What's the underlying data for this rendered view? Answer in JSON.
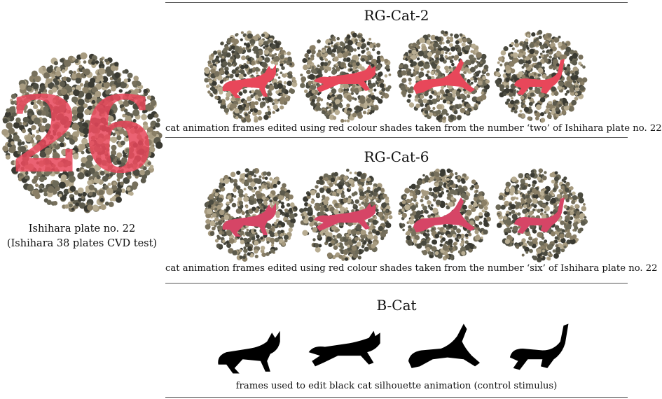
{
  "plate": {
    "number_label": "26",
    "caption_line1": "Ishihara plate no. 22",
    "caption_line2": "(Ishihara 38 plates CVD test)"
  },
  "sections": [
    {
      "title": "RG-Cat-2",
      "caption": "cat animation frames edited using red colour shades taken from the number ‘two’ of Ishihara plate no. 22",
      "figure_color": "#e8475a"
    },
    {
      "title": "RG-Cat-6",
      "caption": "cat animation frames edited using red colour shades taken from the number ‘six’ of Ishihara plate no. 22",
      "figure_color": "#d64566"
    },
    {
      "title": "B-Cat",
      "caption": "frames used to edit black cat silhouette animation (control stimulus)",
      "figure_color": "#000000"
    }
  ],
  "colors": {
    "dot_palette": [
      "#4b4b40",
      "#8a7f66",
      "#5c5a4c",
      "#a79b80",
      "#3a3a32",
      "#77705c",
      "#b8ad92",
      "#6d6a58"
    ],
    "red_two": "#e8475a",
    "red_six": "#c4385e"
  }
}
